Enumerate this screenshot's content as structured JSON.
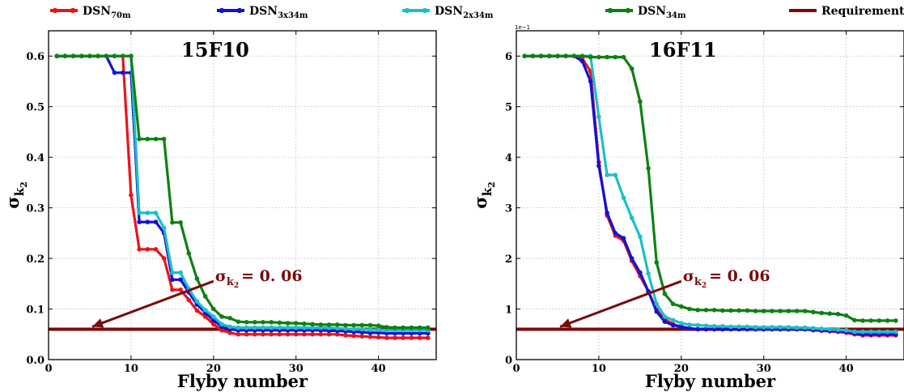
{
  "legend": [
    {
      "label": "DSN",
      "sub": "70m",
      "color": "#e8141a",
      "kind": "line-marker"
    },
    {
      "label": "DSN",
      "sub": "3x34m",
      "color": "#1111d8",
      "kind": "line-marker"
    },
    {
      "label": "DSN",
      "sub": "2x34m",
      "color": "#1dbfc4",
      "kind": "line-marker"
    },
    {
      "label": "DSN",
      "sub": "34m",
      "color": "#0f8012",
      "kind": "line-marker"
    },
    {
      "label": "Requirement",
      "sub": "",
      "color": "#7a0a0a",
      "kind": "line"
    }
  ],
  "chart_data": [
    {
      "type": "line",
      "title": "15F10",
      "xlabel": "Flyby number",
      "ylabel": "σ",
      "ylabel_sub": "k",
      "ylabel_subsub": "2",
      "xlim": [
        0,
        47
      ],
      "ylim": [
        0,
        0.65
      ],
      "xticks": [
        0,
        10,
        20,
        30,
        40
      ],
      "yticks": [
        0.0,
        0.1,
        0.2,
        0.3,
        0.4,
        0.5,
        0.6
      ],
      "ytick_labels": [
        "0.0",
        "0.1",
        "0.2",
        "0.3",
        "0.4",
        "0.5",
        "0.6"
      ],
      "scale_label": "",
      "grid": true,
      "requirement": 0.06,
      "annotation": {
        "symbol": "σ",
        "sub": "k",
        "subsub": "2",
        "text": "= 0. 06",
        "text_x": 20,
        "text_y": 0.165,
        "arrow_start": [
          20,
          0.155
        ],
        "arrow_end": [
          5.3,
          0.065
        ]
      },
      "x": [
        1,
        2,
        3,
        4,
        5,
        6,
        7,
        8,
        9,
        10,
        11,
        12,
        13,
        14,
        15,
        16,
        17,
        18,
        19,
        20,
        21,
        22,
        23,
        24,
        25,
        26,
        27,
        28,
        29,
        30,
        31,
        32,
        33,
        34,
        35,
        36,
        37,
        38,
        39,
        40,
        41,
        42,
        43,
        44,
        45,
        46
      ],
      "series": [
        {
          "color": "#e8141a",
          "values": [
            0.6,
            0.6,
            0.6,
            0.6,
            0.6,
            0.6,
            0.6,
            0.6,
            0.6,
            0.325,
            0.218,
            0.218,
            0.218,
            0.2,
            0.138,
            0.138,
            0.118,
            0.097,
            0.085,
            0.07,
            0.058,
            0.053,
            0.05,
            0.05,
            0.05,
            0.05,
            0.05,
            0.05,
            0.05,
            0.05,
            0.05,
            0.05,
            0.05,
            0.05,
            0.05,
            0.048,
            0.047,
            0.046,
            0.045,
            0.044,
            0.043,
            0.043,
            0.043,
            0.043,
            0.043,
            0.043
          ]
        },
        {
          "color": "#1111d8",
          "values": [
            0.6,
            0.6,
            0.6,
            0.6,
            0.6,
            0.6,
            0.6,
            0.567,
            0.567,
            0.567,
            0.272,
            0.272,
            0.272,
            0.25,
            0.158,
            0.158,
            0.133,
            0.109,
            0.093,
            0.078,
            0.065,
            0.06,
            0.058,
            0.058,
            0.058,
            0.058,
            0.058,
            0.058,
            0.058,
            0.058,
            0.058,
            0.058,
            0.058,
            0.057,
            0.057,
            0.056,
            0.055,
            0.054,
            0.053,
            0.053,
            0.052,
            0.052,
            0.052,
            0.052,
            0.052,
            0.052
          ]
        },
        {
          "color": "#1dbfc4",
          "values": [
            0.6,
            0.6,
            0.6,
            0.6,
            0.6,
            0.6,
            0.6,
            0.6,
            0.6,
            0.6,
            0.29,
            0.29,
            0.29,
            0.26,
            0.172,
            0.172,
            0.14,
            0.115,
            0.098,
            0.085,
            0.07,
            0.065,
            0.063,
            0.063,
            0.063,
            0.063,
            0.063,
            0.063,
            0.063,
            0.063,
            0.063,
            0.063,
            0.063,
            0.063,
            0.062,
            0.061,
            0.06,
            0.06,
            0.059,
            0.059,
            0.058,
            0.058,
            0.058,
            0.058,
            0.058,
            0.058
          ]
        },
        {
          "color": "#0f8012",
          "values": [
            0.6,
            0.6,
            0.6,
            0.6,
            0.6,
            0.6,
            0.6,
            0.6,
            0.6,
            0.6,
            0.436,
            0.436,
            0.436,
            0.436,
            0.271,
            0.271,
            0.21,
            0.16,
            0.125,
            0.1,
            0.085,
            0.082,
            0.075,
            0.074,
            0.074,
            0.074,
            0.074,
            0.073,
            0.072,
            0.072,
            0.071,
            0.07,
            0.069,
            0.069,
            0.069,
            0.068,
            0.068,
            0.068,
            0.068,
            0.067,
            0.064,
            0.063,
            0.063,
            0.063,
            0.063,
            0.063
          ]
        }
      ]
    },
    {
      "type": "line",
      "title": "16F11",
      "xlabel": "Flyby number",
      "ylabel": "σ",
      "ylabel_sub": "k",
      "ylabel_subsub": "2",
      "xlim": [
        0,
        47
      ],
      "ylim": [
        0,
        0.65
      ],
      "xticks": [
        0,
        10,
        20,
        30,
        40
      ],
      "yticks": [
        0.0,
        0.1,
        0.2,
        0.3,
        0.4,
        0.5,
        0.6
      ],
      "ytick_labels": [
        "0",
        "1",
        "2",
        "3",
        "4",
        "5",
        "6"
      ],
      "scale_label": "1e−1",
      "grid": true,
      "requirement": 0.06,
      "annotation": {
        "symbol": "σ",
        "sub": "k",
        "subsub": "2",
        "text": "= 0. 06",
        "text_x": 20,
        "text_y": 0.165,
        "arrow_start": [
          20,
          0.155
        ],
        "arrow_end": [
          5.3,
          0.065
        ]
      },
      "x": [
        1,
        2,
        3,
        4,
        5,
        6,
        7,
        8,
        9,
        10,
        11,
        12,
        13,
        14,
        15,
        16,
        17,
        18,
        19,
        20,
        21,
        22,
        23,
        24,
        25,
        26,
        27,
        28,
        29,
        30,
        31,
        32,
        33,
        34,
        35,
        36,
        37,
        38,
        39,
        40,
        41,
        42,
        43,
        44,
        45,
        46
      ],
      "series": [
        {
          "color": "#e8141a",
          "values": [
            0.6,
            0.6,
            0.6,
            0.6,
            0.6,
            0.6,
            0.6,
            0.595,
            0.57,
            0.39,
            0.285,
            0.245,
            0.235,
            0.195,
            0.165,
            0.135,
            0.098,
            0.08,
            0.07,
            0.065,
            0.062,
            0.06,
            0.06,
            0.06,
            0.06,
            0.06,
            0.06,
            0.06,
            0.06,
            0.06,
            0.06,
            0.06,
            0.06,
            0.06,
            0.06,
            0.058,
            0.057,
            0.056,
            0.055,
            0.053,
            0.05,
            0.048,
            0.048,
            0.048,
            0.048,
            0.048
          ]
        },
        {
          "color": "#1111d8",
          "values": [
            0.6,
            0.6,
            0.6,
            0.6,
            0.6,
            0.6,
            0.6,
            0.59,
            0.55,
            0.383,
            0.29,
            0.25,
            0.24,
            0.2,
            0.172,
            0.135,
            0.095,
            0.075,
            0.068,
            0.065,
            0.062,
            0.06,
            0.06,
            0.06,
            0.06,
            0.06,
            0.06,
            0.06,
            0.06,
            0.06,
            0.06,
            0.06,
            0.06,
            0.06,
            0.06,
            0.059,
            0.058,
            0.057,
            0.056,
            0.055,
            0.052,
            0.05,
            0.05,
            0.05,
            0.05,
            0.05
          ]
        },
        {
          "color": "#1dbfc4",
          "values": [
            0.6,
            0.6,
            0.6,
            0.6,
            0.6,
            0.6,
            0.6,
            0.6,
            0.6,
            0.48,
            0.365,
            0.365,
            0.32,
            0.28,
            0.243,
            0.17,
            0.11,
            0.085,
            0.078,
            0.072,
            0.069,
            0.068,
            0.067,
            0.066,
            0.066,
            0.065,
            0.065,
            0.065,
            0.064,
            0.064,
            0.064,
            0.064,
            0.064,
            0.063,
            0.063,
            0.062,
            0.061,
            0.06,
            0.059,
            0.058,
            0.055,
            0.055,
            0.055,
            0.055,
            0.055,
            0.055
          ]
        },
        {
          "color": "#0f8012",
          "values": [
            0.6,
            0.6,
            0.6,
            0.6,
            0.6,
            0.6,
            0.6,
            0.6,
            0.598,
            0.598,
            0.598,
            0.598,
            0.598,
            0.575,
            0.51,
            0.378,
            0.192,
            0.13,
            0.11,
            0.105,
            0.1,
            0.098,
            0.098,
            0.098,
            0.097,
            0.097,
            0.097,
            0.097,
            0.096,
            0.096,
            0.096,
            0.096,
            0.096,
            0.096,
            0.096,
            0.094,
            0.092,
            0.091,
            0.09,
            0.087,
            0.078,
            0.077,
            0.077,
            0.077,
            0.077,
            0.077
          ]
        }
      ]
    }
  ]
}
